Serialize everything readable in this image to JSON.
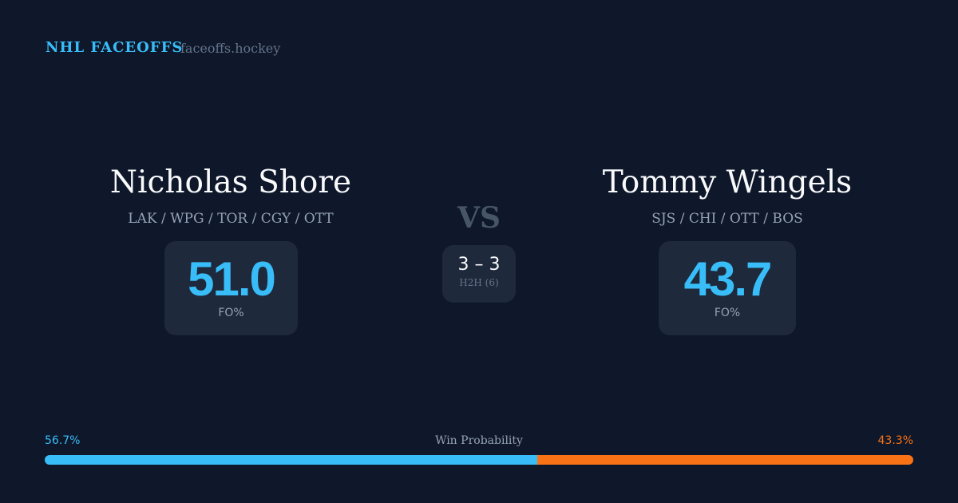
{
  "header": {
    "brand": "NHL FACEOFFS",
    "domain": "faceoffs.hockey"
  },
  "player1": {
    "name": "Nicholas Shore",
    "teams": "LAK / WPG / TOR / CGY / OTT",
    "fo_pct": "51.0",
    "fo_label": "FO%"
  },
  "player2": {
    "name": "Tommy Wingels",
    "teams": "SJS / CHI / OTT / BOS",
    "fo_pct": "43.7",
    "fo_label": "FO%"
  },
  "vs": "VS",
  "h2h": {
    "score": "3 – 3",
    "label": "H2H (6)"
  },
  "win_probability": {
    "title": "Win Probability",
    "left_label": "56.7%",
    "right_label": "43.3%",
    "left_value": 56.7,
    "right_value": 43.3,
    "left_color": "#38bdf8",
    "right_color": "#f97316"
  }
}
